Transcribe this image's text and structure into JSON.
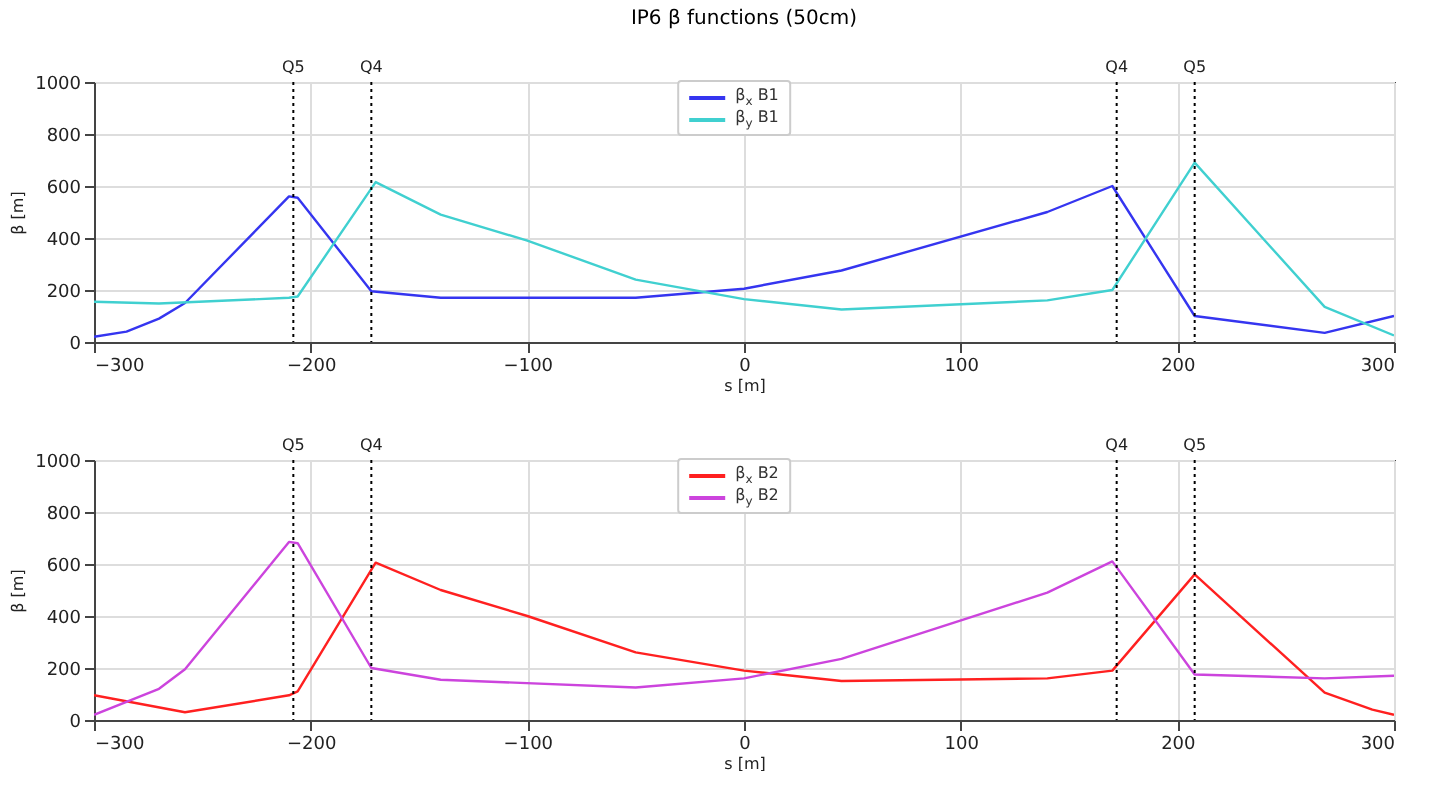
{
  "chart_data": [
    {
      "type": "line",
      "title": "IP6 β functions (50cm)",
      "xlabel": "s [m]",
      "ylabel": "β [m]",
      "xlim": [
        -300,
        300
      ],
      "xticks": [
        -300,
        -200,
        -100,
        0,
        100,
        200,
        300
      ],
      "ylim": [
        0,
        1000
      ],
      "yticks": [
        0,
        200,
        400,
        600,
        800,
        1000
      ],
      "grid": true,
      "legend": "top",
      "marker": "none",
      "line_style": "solid",
      "ref_lines": [
        {
          "axis": "x",
          "value": -208,
          "label": "Q5",
          "line_style": "dotted"
        },
        {
          "axis": "x",
          "value": -172,
          "label": "Q4",
          "line_style": "dotted"
        },
        {
          "axis": "x",
          "value": 172,
          "label": "Q4",
          "line_style": "dotted"
        },
        {
          "axis": "x",
          "value": 208,
          "label": "Q5",
          "line_style": "dotted"
        }
      ],
      "series": [
        {
          "name": "β$_{x}$ B1",
          "color": "#3535f0",
          "x": [
            -300,
            -285,
            -270,
            -258,
            -210,
            -206,
            -172,
            -140,
            -50,
            0,
            45,
            140,
            170,
            208,
            268,
            300
          ],
          "values": [
            20,
            40,
            90,
            150,
            560,
            555,
            195,
            170,
            170,
            205,
            275,
            500,
            600,
            100,
            35,
            100
          ]
        },
        {
          "name": "β$_{y}$ B1",
          "color": "#40d0d0",
          "x": [
            -300,
            -270,
            -210,
            -206,
            -170,
            -140,
            -100,
            -50,
            0,
            45,
            140,
            170,
            208,
            268,
            300
          ],
          "values": [
            155,
            148,
            170,
            175,
            615,
            490,
            390,
            240,
            165,
            125,
            160,
            200,
            690,
            135,
            25
          ]
        }
      ]
    },
    {
      "type": "line",
      "xlabel": "s [m]",
      "ylabel": "β [m]",
      "xlim": [
        -300,
        300
      ],
      "xticks": [
        -300,
        -200,
        -100,
        0,
        100,
        200,
        300
      ],
      "ylim": [
        0,
        1000
      ],
      "yticks": [
        0,
        200,
        400,
        600,
        800,
        1000
      ],
      "grid": true,
      "legend": "top",
      "marker": "none",
      "line_style": "solid",
      "ref_lines": [
        {
          "axis": "x",
          "value": -208,
          "label": "Q5",
          "line_style": "dotted"
        },
        {
          "axis": "x",
          "value": -172,
          "label": "Q4",
          "line_style": "dotted"
        },
        {
          "axis": "x",
          "value": 172,
          "label": "Q4",
          "line_style": "dotted"
        },
        {
          "axis": "x",
          "value": 208,
          "label": "Q5",
          "line_style": "dotted"
        }
      ],
      "series": [
        {
          "name": "β$_{x}$ B2",
          "color": "#ff2020",
          "x": [
            -300,
            -258,
            -210,
            -206,
            -170,
            -140,
            -100,
            -50,
            0,
            45,
            140,
            170,
            208,
            268,
            290,
            300
          ],
          "values": [
            95,
            30,
            95,
            110,
            605,
            500,
            400,
            260,
            190,
            150,
            160,
            190,
            560,
            105,
            40,
            20
          ]
        },
        {
          "name": "β$_{y}$ B2",
          "color": "#cc44dd",
          "x": [
            -300,
            -270,
            -258,
            -210,
            -206,
            -172,
            -140,
            -50,
            0,
            45,
            140,
            170,
            208,
            268,
            300
          ],
          "values": [
            20,
            120,
            195,
            685,
            680,
            200,
            155,
            125,
            160,
            235,
            490,
            610,
            175,
            160,
            170
          ]
        }
      ]
    }
  ]
}
